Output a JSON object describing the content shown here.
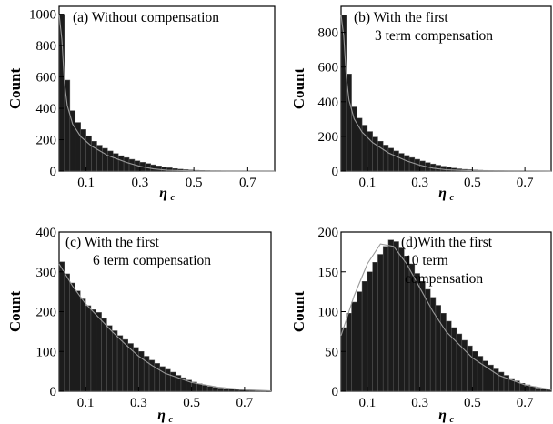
{
  "chart_data": [
    {
      "type": "bar",
      "annotation_lines": [
        "(a) Without compensation"
      ],
      "xlabel": "η",
      "xlabel_sub": "c",
      "ylabel": "Count",
      "xlim": [
        0,
        0.8
      ],
      "ylim": [
        0,
        1050
      ],
      "xticks": [
        "0.1",
        "0.3",
        "0.5",
        "0.7"
      ],
      "xtick_values": [
        0.1,
        0.3,
        0.5,
        0.7
      ],
      "yticks": [
        "0",
        "200",
        "400",
        "600",
        "800",
        "1000"
      ],
      "ytick_values": [
        0,
        200,
        400,
        600,
        800,
        1000
      ],
      "bin_start": 0,
      "bin_width": 0.02,
      "values": [
        1000,
        580,
        385,
        310,
        265,
        225,
        190,
        165,
        145,
        128,
        112,
        98,
        86,
        75,
        65,
        56,
        48,
        40,
        33,
        27,
        21,
        16,
        12,
        9,
        7,
        5,
        4,
        3,
        2,
        2,
        1,
        1,
        1,
        0,
        0,
        0,
        0,
        0,
        0,
        0
      ],
      "fit": [
        [
          0.0,
          1000
        ],
        [
          0.01,
          840
        ],
        [
          0.02,
          560
        ],
        [
          0.03,
          420
        ],
        [
          0.05,
          300
        ],
        [
          0.08,
          220
        ],
        [
          0.12,
          160
        ],
        [
          0.18,
          100
        ],
        [
          0.25,
          55
        ],
        [
          0.3,
          30
        ],
        [
          0.35,
          14
        ],
        [
          0.4,
          6
        ],
        [
          0.5,
          1
        ],
        [
          0.8,
          0
        ]
      ]
    },
    {
      "type": "bar",
      "annotation_lines": [
        "(b) With the first",
        "3 term compensation"
      ],
      "xlabel": "η",
      "xlabel_sub": "c",
      "ylabel": "Count",
      "xlim": [
        0,
        0.8
      ],
      "ylim": [
        0,
        950
      ],
      "xticks": [
        "0.1",
        "0.3",
        "0.5",
        "0.7"
      ],
      "xtick_values": [
        0.1,
        0.3,
        0.5,
        0.7
      ],
      "yticks": [
        "0",
        "200",
        "400",
        "600",
        "800"
      ],
      "ytick_values": [
        0,
        200,
        400,
        600,
        800
      ],
      "bin_start": 0,
      "bin_width": 0.02,
      "values": [
        900,
        560,
        370,
        305,
        265,
        228,
        196,
        172,
        150,
        132,
        116,
        102,
        90,
        78,
        68,
        58,
        49,
        41,
        34,
        28,
        22,
        17,
        13,
        10,
        8,
        6,
        5,
        4,
        3,
        2,
        2,
        1,
        1,
        1,
        0,
        0,
        0,
        0,
        0,
        0
      ],
      "fit": [
        [
          0.0,
          900
        ],
        [
          0.01,
          780
        ],
        [
          0.02,
          540
        ],
        [
          0.03,
          410
        ],
        [
          0.05,
          300
        ],
        [
          0.08,
          225
        ],
        [
          0.12,
          165
        ],
        [
          0.18,
          105
        ],
        [
          0.25,
          58
        ],
        [
          0.3,
          34
        ],
        [
          0.35,
          17
        ],
        [
          0.4,
          8
        ],
        [
          0.5,
          2
        ],
        [
          0.8,
          0
        ]
      ]
    },
    {
      "type": "bar",
      "annotation_lines": [
        "(c) With the first",
        "6 term compensation"
      ],
      "xlabel": "η",
      "xlabel_sub": "c",
      "ylabel": "Count",
      "xlim": [
        0,
        0.8
      ],
      "ylim": [
        0,
        400
      ],
      "xticks": [
        "0.1",
        "0.3",
        "0.5",
        "0.7"
      ],
      "xtick_values": [
        0.1,
        0.3,
        0.5,
        0.7
      ],
      "yticks": [
        "0",
        "100",
        "200",
        "300",
        "400"
      ],
      "ytick_values": [
        0,
        100,
        200,
        300,
        400
      ],
      "bin_start": 0,
      "bin_width": 0.02,
      "values": [
        325,
        295,
        272,
        252,
        232,
        215,
        205,
        198,
        183,
        165,
        152,
        140,
        130,
        120,
        110,
        100,
        88,
        78,
        70,
        62,
        55,
        48,
        40,
        34,
        28,
        23,
        19,
        15,
        12,
        10,
        8,
        6,
        5,
        4,
        3,
        2,
        2,
        1,
        1,
        0
      ],
      "fit": [
        [
          0.0,
          320
        ],
        [
          0.05,
          265
        ],
        [
          0.1,
          220
        ],
        [
          0.15,
          185
        ],
        [
          0.2,
          150
        ],
        [
          0.25,
          118
        ],
        [
          0.3,
          88
        ],
        [
          0.35,
          65
        ],
        [
          0.4,
          45
        ],
        [
          0.5,
          22
        ],
        [
          0.6,
          10
        ],
        [
          0.7,
          4
        ],
        [
          0.8,
          1
        ]
      ]
    },
    {
      "type": "bar",
      "annotation_lines": [
        "(d)With the first",
        "10 term",
        "compensation"
      ],
      "xlabel": "η",
      "xlabel_sub": "c",
      "ylabel": "Count",
      "xlim": [
        0,
        0.8
      ],
      "ylim": [
        0,
        200
      ],
      "xticks": [
        "0.1",
        "0.3",
        "0.5",
        "0.7"
      ],
      "xtick_values": [
        0.1,
        0.3,
        0.5,
        0.7
      ],
      "yticks": [
        "0",
        "50",
        "100",
        "150",
        "200"
      ],
      "ytick_values": [
        0,
        50,
        100,
        150,
        200
      ],
      "bin_start": 0,
      "bin_width": 0.02,
      "values": [
        80,
        98,
        112,
        125,
        138,
        150,
        162,
        172,
        182,
        190,
        188,
        180,
        170,
        160,
        148,
        138,
        128,
        118,
        108,
        98,
        88,
        80,
        72,
        64,
        57,
        50,
        44,
        38,
        33,
        28,
        24,
        20,
        16,
        13,
        10,
        8,
        6,
        4,
        3,
        2
      ],
      "fit": [
        [
          0.0,
          70
        ],
        [
          0.05,
          120
        ],
        [
          0.1,
          160
        ],
        [
          0.15,
          185
        ],
        [
          0.2,
          182
        ],
        [
          0.25,
          160
        ],
        [
          0.3,
          130
        ],
        [
          0.35,
          100
        ],
        [
          0.4,
          75
        ],
        [
          0.5,
          42
        ],
        [
          0.6,
          20
        ],
        [
          0.7,
          8
        ],
        [
          0.8,
          2
        ]
      ]
    }
  ]
}
